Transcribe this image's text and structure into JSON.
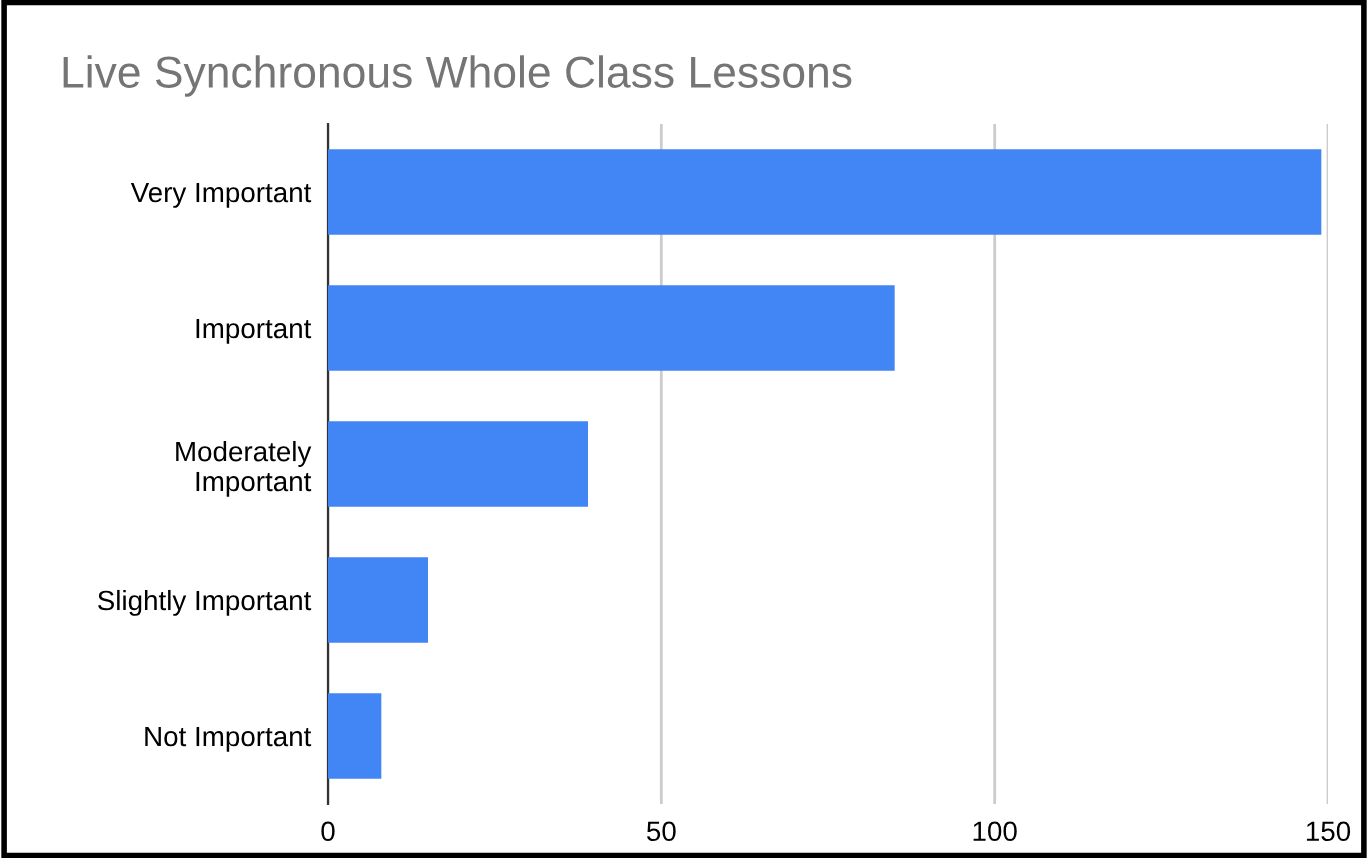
{
  "chart_data": {
    "type": "bar",
    "orientation": "horizontal",
    "title": "Live Synchronous Whole Class Lessons",
    "categories": [
      "Very Important",
      "Important",
      "Moderately\nImportant",
      "Slightly Important",
      "Not Important"
    ],
    "values": [
      149,
      85,
      39,
      15,
      8
    ],
    "color": "#4285f4",
    "xlim": [
      0,
      150
    ],
    "xticks": [
      0,
      50,
      100,
      150
    ],
    "grid": "x",
    "legend": false
  }
}
